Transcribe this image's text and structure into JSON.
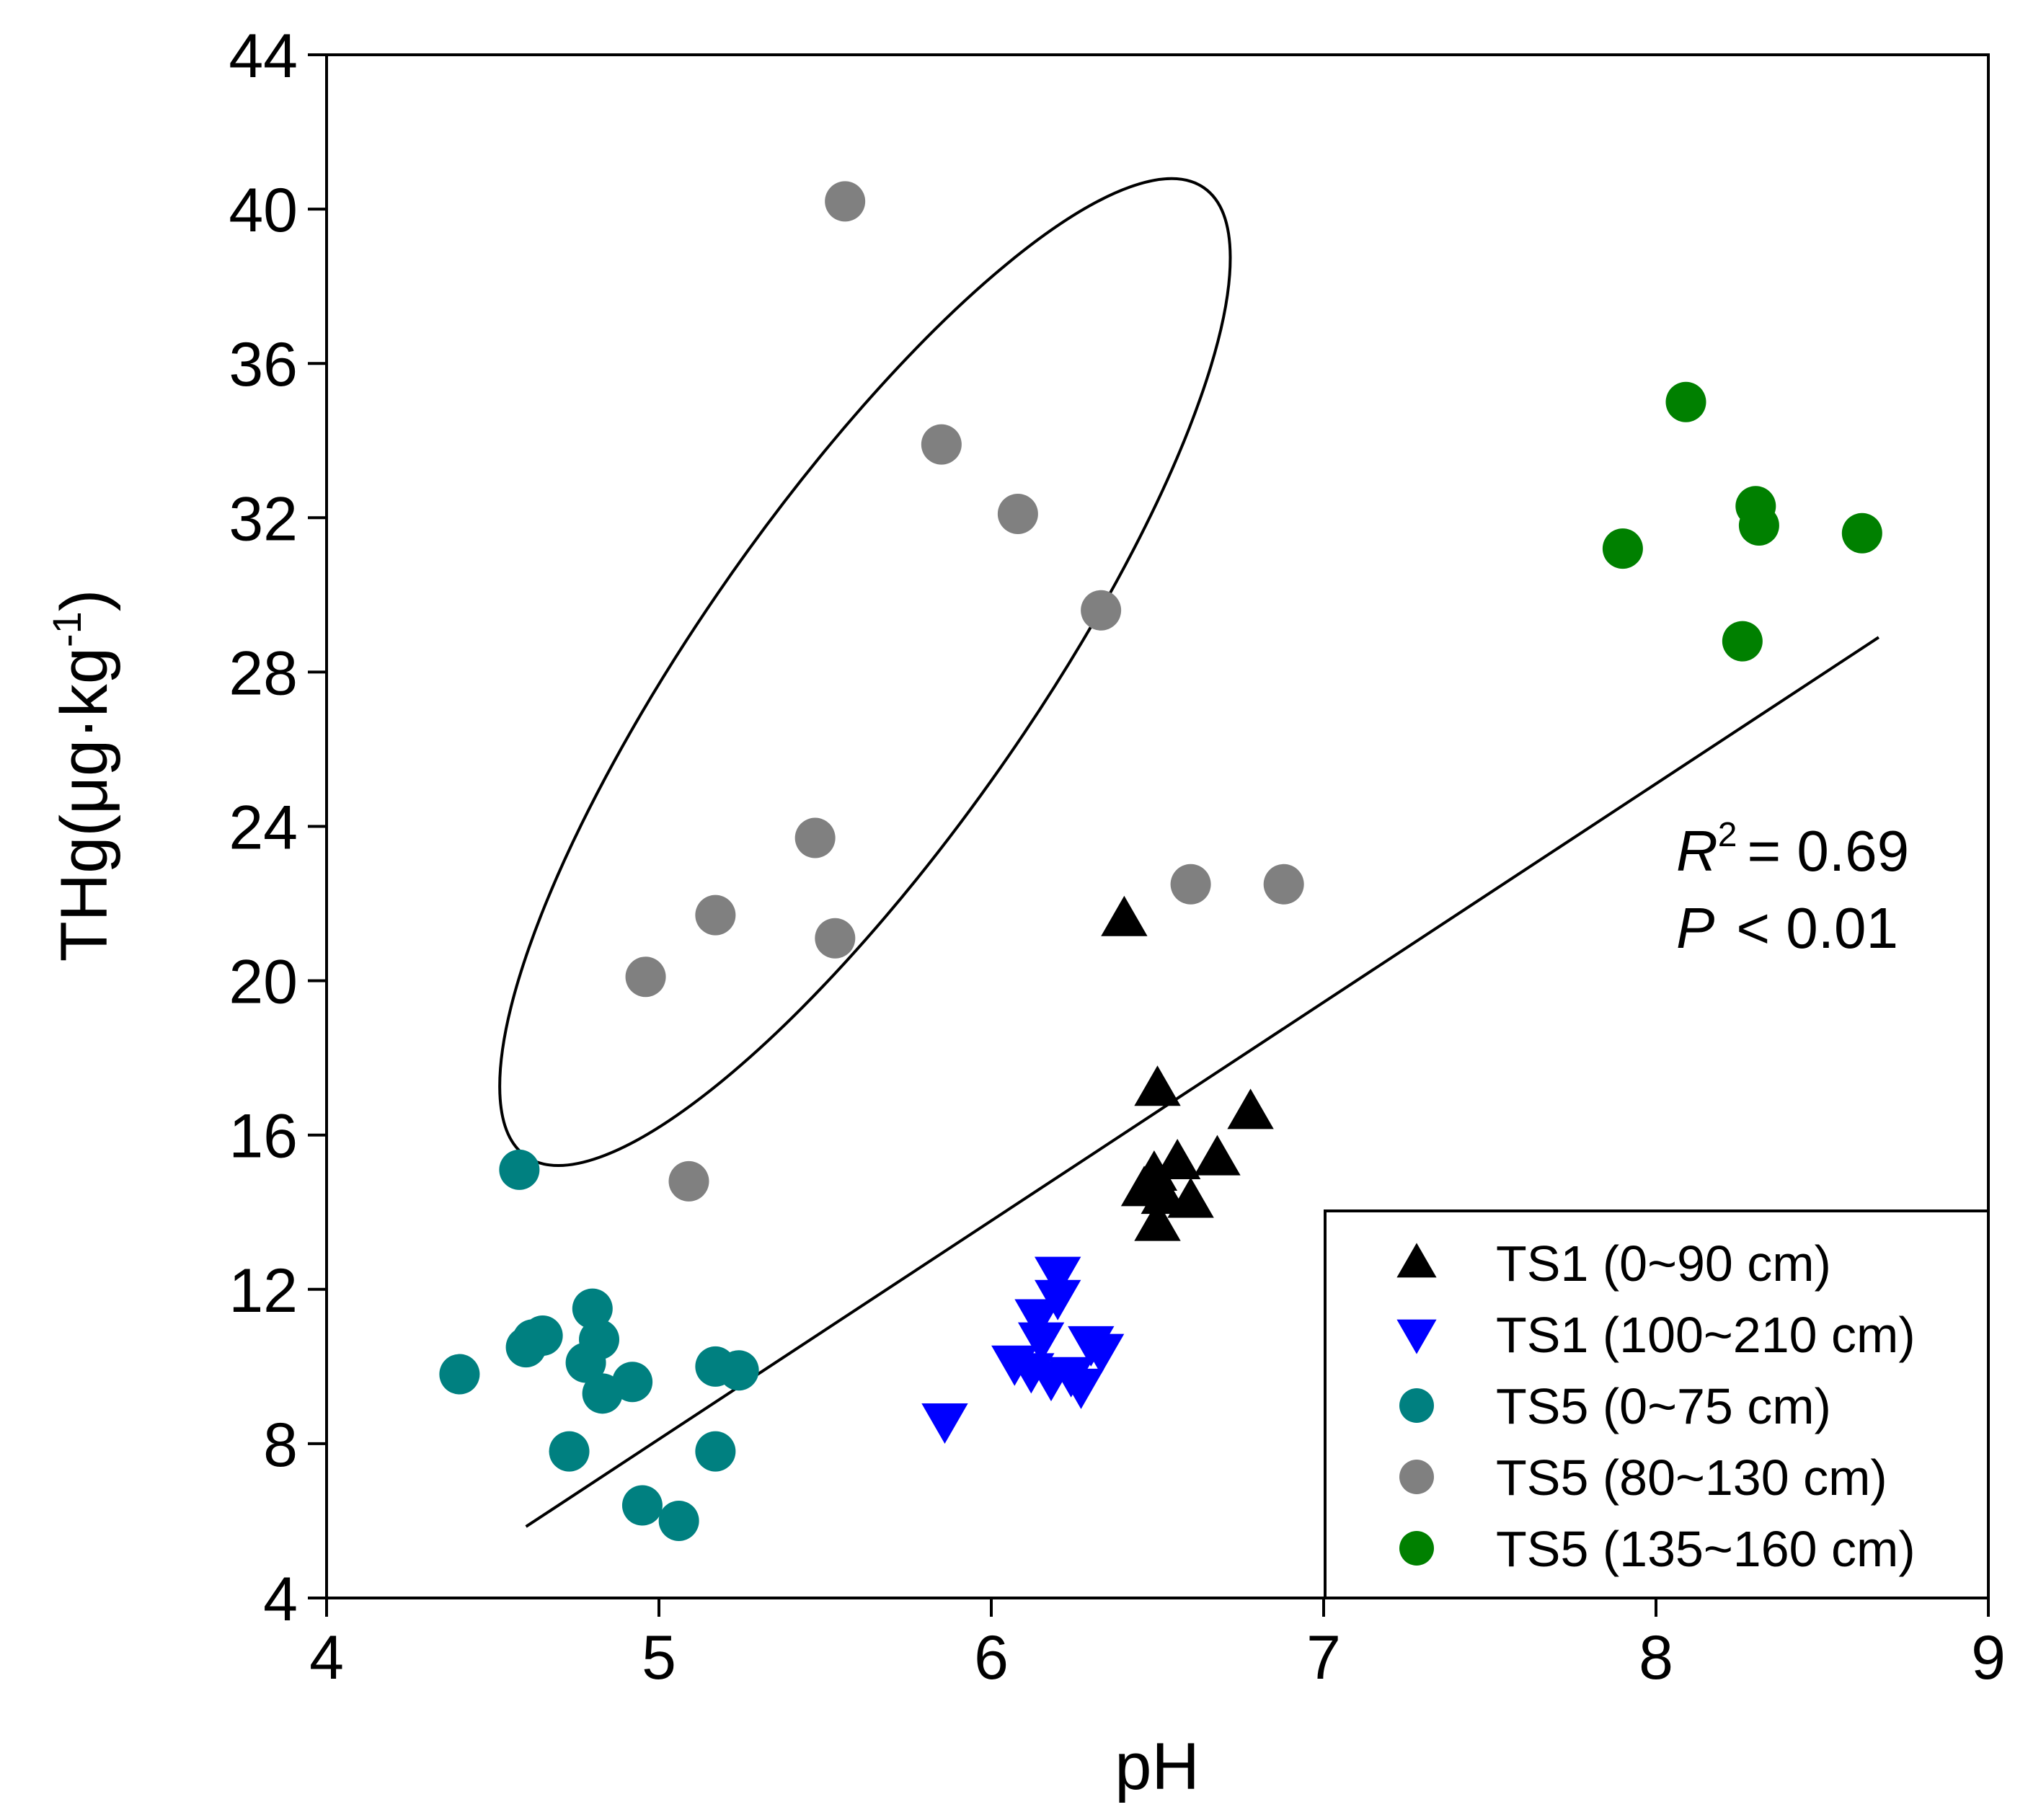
{
  "chart_data": {
    "type": "scatter",
    "xlabel": "pH",
    "ylabel_main": "THg(μg·kg",
    "ylabel_sup": "-1",
    "ylabel_close": ")",
    "xlim": [
      4,
      9
    ],
    "ylim": [
      4,
      44
    ],
    "x_ticks": [
      4,
      5,
      6,
      7,
      8,
      9
    ],
    "x_tick_labels": [
      "4",
      "5",
      "6",
      "7",
      "8",
      "9"
    ],
    "y_ticks": [
      4,
      8,
      12,
      16,
      20,
      24,
      28,
      32,
      36,
      40,
      44
    ],
    "y_tick_labels": [
      "4",
      "8",
      "12",
      "16",
      "20",
      "24",
      "28",
      "32",
      "36",
      "40",
      "44"
    ],
    "legend_position": "bottom-right",
    "series": [
      {
        "name": "TS1 (0~90 cm)",
        "marker": "triangle-up",
        "color": "#000000",
        "points": [
          [
            6.4,
            21.6
          ],
          [
            6.5,
            17.2
          ],
          [
            6.78,
            16.6
          ],
          [
            6.68,
            15.4
          ],
          [
            6.56,
            15.3
          ],
          [
            6.49,
            15.0
          ],
          [
            6.46,
            14.6
          ],
          [
            6.52,
            14.4
          ],
          [
            6.6,
            14.3
          ],
          [
            6.5,
            13.7
          ]
        ]
      },
      {
        "name": "TS1 (100~210 cm)",
        "marker": "triangle-down",
        "color": "#0000ff",
        "points": [
          [
            5.86,
            8.6
          ],
          [
            6.2,
            12.4
          ],
          [
            6.2,
            11.8
          ],
          [
            6.14,
            11.3
          ],
          [
            6.15,
            10.7
          ],
          [
            6.3,
            10.6
          ],
          [
            6.33,
            10.4
          ],
          [
            6.07,
            10.1
          ],
          [
            6.12,
            9.9
          ],
          [
            6.18,
            9.7
          ],
          [
            6.27,
            9.5
          ],
          [
            6.24,
            9.8
          ]
        ]
      },
      {
        "name": "TS5 (0~75 cm)",
        "marker": "circle",
        "color": "#008080",
        "points": [
          [
            4.58,
            15.1
          ],
          [
            4.8,
            11.5
          ],
          [
            4.82,
            10.7
          ],
          [
            4.62,
            10.7
          ],
          [
            4.65,
            10.8
          ],
          [
            4.6,
            10.5
          ],
          [
            4.78,
            10.1
          ],
          [
            4.4,
            9.8
          ],
          [
            4.92,
            9.6
          ],
          [
            4.83,
            9.3
          ],
          [
            5.17,
            10.0
          ],
          [
            5.24,
            9.9
          ],
          [
            4.73,
            7.8
          ],
          [
            5.17,
            7.8
          ],
          [
            4.95,
            6.4
          ],
          [
            5.06,
            6.0
          ]
        ]
      },
      {
        "name": "TS5 (80~130 cm)",
        "marker": "circle",
        "color": "#808080",
        "points": [
          [
            5.56,
            40.2
          ],
          [
            5.85,
            33.9
          ],
          [
            6.08,
            32.1
          ],
          [
            6.33,
            29.6
          ],
          [
            5.47,
            23.7
          ],
          [
            5.17,
            21.7
          ],
          [
            5.53,
            21.1
          ],
          [
            4.96,
            20.1
          ],
          [
            6.6,
            22.5
          ],
          [
            6.88,
            22.5
          ],
          [
            5.09,
            14.8
          ]
        ]
      },
      {
        "name": "TS5 (135~160 cm)",
        "marker": "circle",
        "color": "#008000",
        "points": [
          [
            8.09,
            35.0
          ],
          [
            8.3,
            32.3
          ],
          [
            8.31,
            31.8
          ],
          [
            8.62,
            31.6
          ],
          [
            7.9,
            31.2
          ],
          [
            8.26,
            28.8
          ]
        ]
      }
    ],
    "regression_line": {
      "x": [
        4.6,
        8.67
      ],
      "y": [
        5.85,
        28.9
      ]
    },
    "ellipse_note": "ellipse encloses TS5 (80~130 cm) upper cluster",
    "annotation": {
      "r2_label": "R",
      "r2_sup": "2",
      "r2_value": "= 0.69",
      "p_label": "P",
      "p_value": "< 0.01"
    }
  }
}
